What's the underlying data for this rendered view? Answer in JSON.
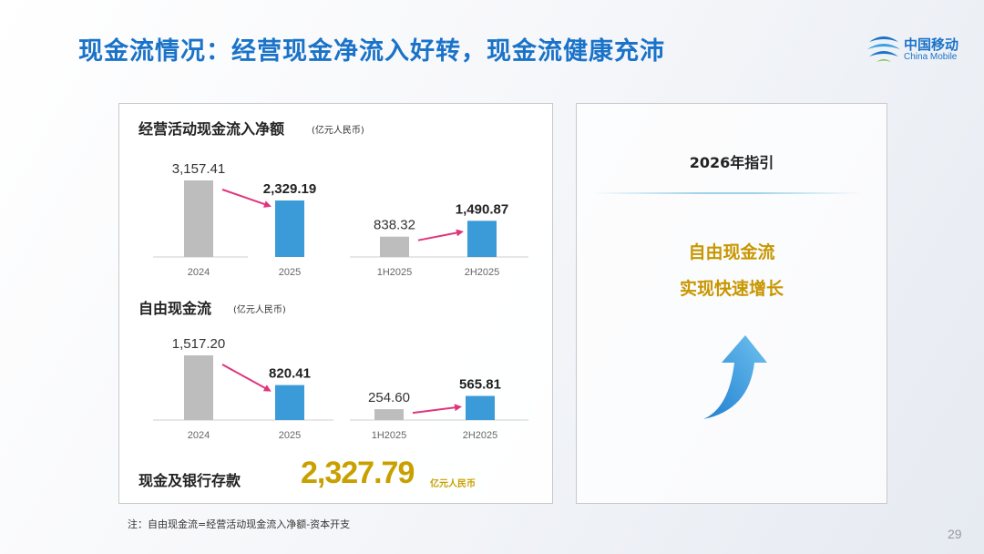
{
  "header": {
    "title": "现金流情况：经营现金净流入好转，现金流健康充沛",
    "logo_cn": "中国移动",
    "logo_en": "China Mobile"
  },
  "colors": {
    "brand_blue": "#1a73c8",
    "bar_gray": "#bdbdbd",
    "bar_blue": "#3b9ad8",
    "arrow_pink": "#e0357e",
    "gold": "#c8a000"
  },
  "operating": {
    "title": "经营活动现金流入净额",
    "unit": "(亿元人民币)"
  },
  "fcf": {
    "title": "自由现金流",
    "unit": "(亿元人民币)"
  },
  "cash": {
    "label": "现金及银行存款",
    "value": "2,327.79",
    "unit": "亿元人民币"
  },
  "guidance": {
    "title": "2026年指引",
    "line1": "自由现金流",
    "line2": "实现快速增长"
  },
  "note": "注：自由现金流=经营活动现金流入净额-资本开支",
  "page_number": "29",
  "chart_data": [
    {
      "type": "bar",
      "title": "经营活动现金流入净额",
      "unit": "亿元人民币",
      "groups": [
        {
          "categories": [
            "2024",
            "2025"
          ],
          "values": [
            3157.41,
            2329.19
          ],
          "labels": [
            "3,157.41",
            "2,329.19"
          ]
        },
        {
          "categories": [
            "1H2025",
            "2H2025"
          ],
          "values": [
            838.32,
            1490.87
          ],
          "labels": [
            "838.32",
            "1,490.87"
          ]
        }
      ]
    },
    {
      "type": "bar",
      "title": "自由现金流",
      "unit": "亿元人民币",
      "groups": [
        {
          "categories": [
            "2024",
            "2025"
          ],
          "values": [
            1517.2,
            820.41
          ],
          "labels": [
            "1,517.20",
            "820.41"
          ]
        },
        {
          "categories": [
            "1H2025",
            "2H2025"
          ],
          "values": [
            254.6,
            565.81
          ],
          "labels": [
            "254.60",
            "565.81"
          ]
        }
      ]
    }
  ]
}
